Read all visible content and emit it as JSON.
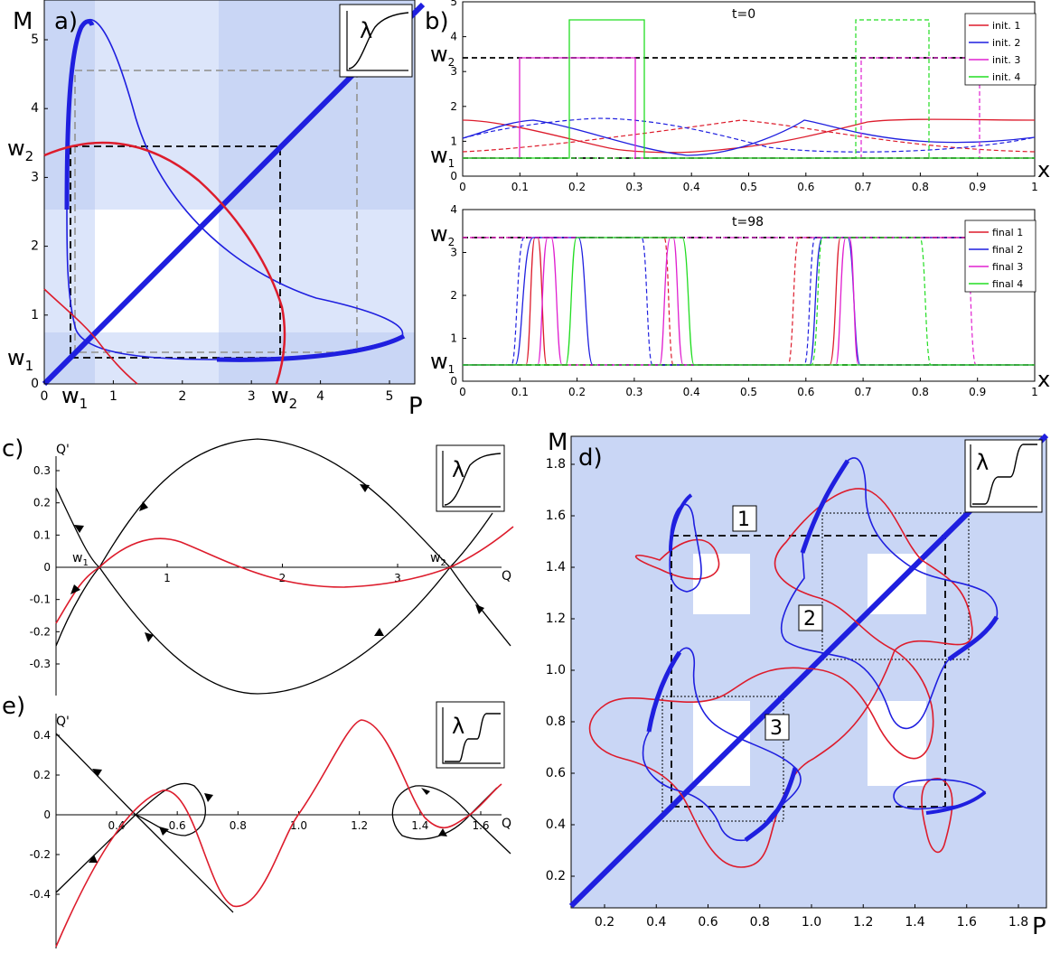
{
  "colors": {
    "bg_dark": "#c9d6f5",
    "bg_mid": "#dce5fa",
    "bg_light": "#eef2fc",
    "blue": "#1f1fdf",
    "red": "#dd1c2c",
    "magenta": "#e020d0",
    "green": "#22dd22",
    "black": "#000000",
    "grey": "#9a9a9a"
  },
  "panels": {
    "a": {
      "label": "a)",
      "ylabel": "M",
      "xlabel": "P",
      "inset_label": "λ",
      "w1": "w",
      "w1_sub": "1",
      "w2": "w",
      "w2_sub": "2"
    },
    "b": {
      "label": "b)",
      "xlabel_top": "x",
      "xlabel_bottom": "x"
    },
    "c": {
      "label": "c)",
      "ylabel": "Q'",
      "xlabel": "Q",
      "inset_label": "λ",
      "w1": "w",
      "w1_sub": "1",
      "w2": "w",
      "w2_sub": "2"
    },
    "d": {
      "label": "d)",
      "ylabel": "M",
      "xlabel": "P",
      "inset_label": "λ",
      "box1": "1",
      "box2": "2",
      "box3": "3"
    },
    "e": {
      "label": "e)",
      "ylabel": "Q'",
      "xlabel": "Q",
      "inset_label": "λ"
    }
  },
  "chart_data": [
    {
      "id": "a",
      "type": "line",
      "xlim": [
        0,
        5.5
      ],
      "ylim": [
        0,
        5.3
      ],
      "xticks": [
        "0",
        "1",
        "2",
        "3",
        "4",
        "5"
      ],
      "yticks": [
        "0",
        "1",
        "2",
        "3",
        "4",
        "5"
      ],
      "markers": {
        "w1": 0.7,
        "w2": 3.8
      },
      "series": [
        {
          "color": "blue",
          "style": "thick-diagonal",
          "points": [
            [
              0,
              0
            ],
            [
              5.5,
              5.5
            ]
          ]
        },
        {
          "color": "blue",
          "style": "curve",
          "points": [
            [
              0.45,
              3.3
            ],
            [
              0.5,
              4.6
            ],
            [
              0.65,
              5.2
            ],
            [
              1.2,
              4.8
            ],
            [
              2.0,
              3.2
            ],
            [
              3.0,
              1.8
            ],
            [
              4.5,
              1.2
            ],
            [
              5.3,
              0.75
            ],
            [
              3.0,
              0.55
            ],
            [
              1.0,
              0.75
            ],
            [
              0.5,
              1.3
            ],
            [
              0.4,
              2.0
            ],
            [
              0.45,
              3.3
            ]
          ]
        },
        {
          "color": "red",
          "style": "curve",
          "points": [
            [
              0,
              3.35
            ],
            [
              0.8,
              3.5
            ],
            [
              2.0,
              3.1
            ],
            [
              3.2,
              2.0
            ],
            [
              3.8,
              1.2
            ],
            [
              3.7,
              0
            ]
          ]
        },
        {
          "color": "red",
          "style": "curve",
          "points": [
            [
              0,
              1.4
            ],
            [
              0.7,
              0.7
            ],
            [
              1.3,
              0
            ]
          ]
        }
      ]
    },
    {
      "id": "b_top",
      "type": "line",
      "title": "t=0",
      "xlim": [
        0,
        1
      ],
      "ylim": [
        0,
        5
      ],
      "xticks": [
        "0",
        "0.1",
        "0.2",
        "0.3",
        "0.4",
        "0.5",
        "0.6",
        "0.7",
        "0.8",
        "0.9",
        "1"
      ],
      "yticks": [
        "0",
        "1",
        "2",
        "3",
        "4",
        "5"
      ],
      "markers": {
        "w1": 0.55,
        "w2": 3.5
      },
      "series": [
        {
          "name": "init. 1",
          "color": "red"
        },
        {
          "name": "init. 2",
          "color": "blue"
        },
        {
          "name": "init. 3",
          "color": "magenta"
        },
        {
          "name": "init. 4",
          "color": "green"
        }
      ]
    },
    {
      "id": "b_bottom",
      "type": "line",
      "title": "t=98",
      "xlim": [
        0,
        1
      ],
      "ylim": [
        0,
        4
      ],
      "xticks": [
        "0",
        "0.1",
        "0.2",
        "0.3",
        "0.4",
        "0.5",
        "0.6",
        "0.7",
        "0.8",
        "0.9",
        "1"
      ],
      "yticks": [
        "0",
        "1",
        "2",
        "3",
        "4"
      ],
      "markers": {
        "w1": 0.55,
        "w2": 3.5
      },
      "series": [
        {
          "name": "final 1",
          "color": "red"
        },
        {
          "name": "final 2",
          "color": "blue"
        },
        {
          "name": "final 3",
          "color": "magenta"
        },
        {
          "name": "final 4",
          "color": "green"
        }
      ]
    },
    {
      "id": "c",
      "type": "line",
      "xlim": [
        -0.2,
        4.0
      ],
      "ylim": [
        -0.4,
        0.4
      ],
      "xticks": [
        "1",
        "2",
        "3"
      ],
      "yticks": [
        "0.3",
        "0.2",
        "0.1",
        "0",
        "-0.1",
        "-0.2",
        "-0.3"
      ],
      "markers": {
        "w1": 0.55,
        "w2": 3.5
      }
    },
    {
      "id": "d",
      "type": "line",
      "xlim": [
        0.1,
        1.9
      ],
      "ylim": [
        0.1,
        1.9
      ],
      "xticks": [
        "0.2",
        "0.4",
        "0.6",
        "0.8",
        "1.0",
        "1.2",
        "1.4",
        "1.6",
        "1.8"
      ],
      "yticks": [
        "0.2",
        "0.4",
        "0.6",
        "0.8",
        "1.0",
        "1.2",
        "1.4",
        "1.6",
        "1.8"
      ]
    },
    {
      "id": "e",
      "type": "line",
      "xlim": [
        0.05,
        1.75
      ],
      "ylim": [
        -0.55,
        0.45
      ],
      "xticks": [
        "0.4",
        "0.6",
        "0.8",
        "1.0",
        "1.2",
        "1.4",
        "1.6"
      ],
      "yticks": [
        "0.4",
        "0.2",
        "0",
        "-0.2",
        "-0.4"
      ]
    }
  ]
}
